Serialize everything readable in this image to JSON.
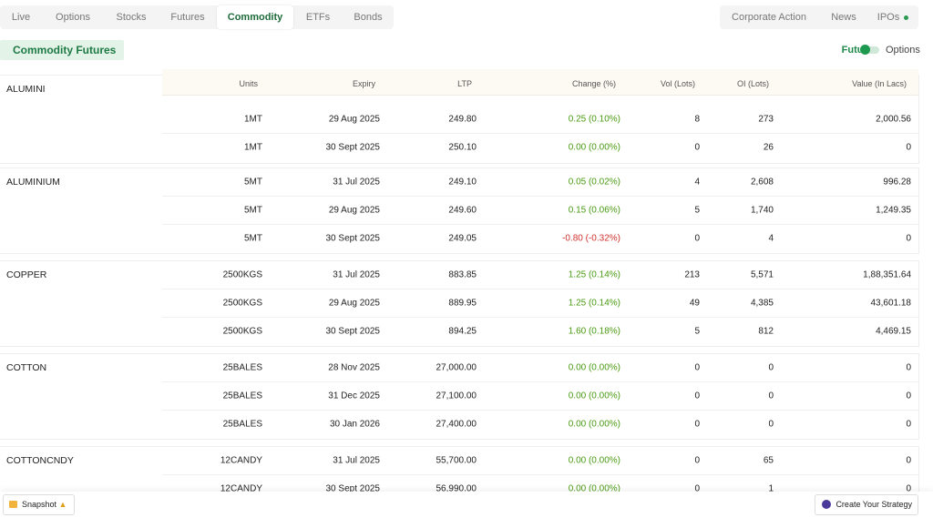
{
  "nav": {
    "left": [
      "Live",
      "Options",
      "Stocks",
      "Futures",
      "Commodity",
      "ETFs",
      "Bonds"
    ],
    "right": [
      "Corporate Action",
      "News",
      "IPOs"
    ]
  },
  "section_title": "Commodity Futures",
  "toggle": [
    "Futures",
    "Options"
  ],
  "table": {
    "headers": [
      "Units",
      "Expiry",
      "LTP",
      "Change (%)",
      "Vol (Lots)",
      "OI (Lots)",
      "Value (In Lacs)"
    ],
    "groups": [
      {
        "name": "ALUMINI",
        "rows": [
          [
            "1MT",
            "29 Aug 2025",
            "249.80",
            "0.25 (0.10%)",
            "8",
            "273",
            "2,000.56"
          ],
          [
            "1MT",
            "30 Sept 2025",
            "250.10",
            "0.00 (0.00%)",
            "0",
            "26",
            "0"
          ]
        ]
      },
      {
        "name": "ALUMINIUM",
        "rows": [
          [
            "5MT",
            "31 Jul 2025",
            "249.10",
            "0.05 (0.02%)",
            "4",
            "2,608",
            "996.28"
          ],
          [
            "5MT",
            "29 Aug 2025",
            "249.60",
            "0.15 (0.06%)",
            "5",
            "1,740",
            "1,249.35"
          ],
          [
            "5MT",
            "30 Sept 2025",
            "249.05",
            "-0.80 (-0.32%)",
            "0",
            "4",
            "0"
          ]
        ]
      },
      {
        "name": "COPPER",
        "rows": [
          [
            "2500KGS",
            "31 Jul 2025",
            "883.85",
            "1.25 (0.14%)",
            "213",
            "5,571",
            "1,88,351.64"
          ],
          [
            "2500KGS",
            "29 Aug 2025",
            "889.95",
            "1.25 (0.14%)",
            "49",
            "4,385",
            "43,601.18"
          ],
          [
            "2500KGS",
            "30 Sept 2025",
            "894.25",
            "1.60 (0.18%)",
            "5",
            "812",
            "4,469.15"
          ]
        ]
      },
      {
        "name": "COTTON",
        "rows": [
          [
            "25BALES",
            "28 Nov 2025",
            "27,000.00",
            "0.00 (0.00%)",
            "0",
            "0",
            "0"
          ],
          [
            "25BALES",
            "31 Dec 2025",
            "27,100.00",
            "0.00 (0.00%)",
            "0",
            "0",
            "0"
          ],
          [
            "25BALES",
            "30 Jan 2026",
            "27,400.00",
            "0.00 (0.00%)",
            "0",
            "0",
            "0"
          ]
        ]
      },
      {
        "name": "COTTONCNDY",
        "rows": [
          [
            "12CANDY",
            "31 Jul 2025",
            "55,700.00",
            "0.00 (0.00%)",
            "0",
            "65",
            "0"
          ],
          [
            "12CANDY",
            "30 Sept 2025",
            "56,990.00",
            "0.00 (0.00%)",
            "0",
            "1",
            "0"
          ]
        ]
      }
    ]
  },
  "footer": {
    "snapshot": "Snapshot",
    "strategy": "Create Your Strategy"
  }
}
